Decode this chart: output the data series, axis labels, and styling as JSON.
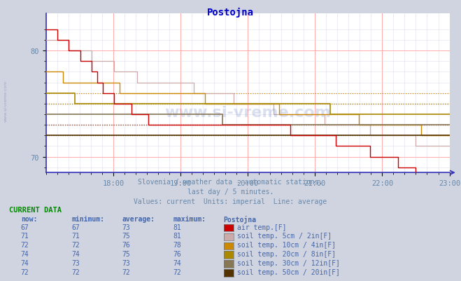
{
  "title": "Postojna",
  "title_color": "#0000cc",
  "bg_color": "#d0d4e0",
  "chart_bg_color": "#ffffff",
  "watermark": "www.si-vreme.com",
  "subtitle1": "Slovenia / weather data - automatic stations.",
  "subtitle2": "last day / 5 minutes.",
  "subtitle3": "Values: current  Units: imperial  Line: average",
  "subtitle_color": "#6688aa",
  "xlabels": [
    "18:00",
    "19:00",
    "20:00",
    "21:00",
    "22:00",
    "23:00"
  ],
  "ylim": [
    68.5,
    83.5
  ],
  "series_colors": {
    "air_temp": "#cc0000",
    "soil_5cm": "#ccaaaa",
    "soil_10cm": "#cc8800",
    "soil_20cm": "#aa8800",
    "soil_30cm": "#887755",
    "soil_50cm": "#553300"
  },
  "avg_values": {
    "air_temp": 73,
    "soil_5cm": 75,
    "soil_10cm": 76,
    "soil_20cm": 75,
    "soil_30cm": 73,
    "soil_50cm": 72
  },
  "current_data_header": "CURRENT DATA",
  "table_headers": [
    "now:",
    "minimum:",
    "average:",
    "maximum:",
    "Postojna"
  ],
  "table_data": [
    [
      67,
      67,
      73,
      81,
      "air temp.[F]"
    ],
    [
      71,
      71,
      75,
      81,
      "soil temp. 5cm / 2in[F]"
    ],
    [
      72,
      72,
      76,
      78,
      "soil temp. 10cm / 4in[F]"
    ],
    [
      74,
      74,
      75,
      76,
      "soil temp. 20cm / 8in[F]"
    ],
    [
      74,
      73,
      73,
      74,
      "soil temp. 30cm / 12in[F]"
    ],
    [
      72,
      72,
      72,
      72,
      "soil temp. 50cm / 20in[F]"
    ]
  ],
  "swatch_colors": [
    "#cc0000",
    "#ccaaaa",
    "#cc8800",
    "#aa8800",
    "#887755",
    "#553300"
  ]
}
